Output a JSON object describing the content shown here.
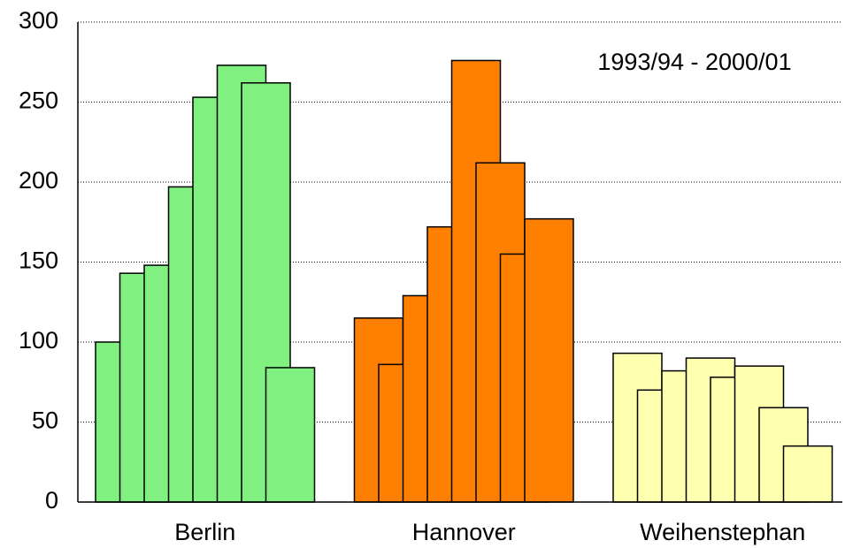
{
  "chart_data": {
    "type": "bar",
    "annotation": "1993/94 - 2000/01",
    "categories": [
      "Berlin",
      "Hannover",
      "Weihenstephan"
    ],
    "groups": [
      {
        "color": "#80f080",
        "values": [
          100,
          143,
          148,
          197,
          253,
          273,
          262,
          84
        ]
      },
      {
        "color": "#ff8000",
        "values": [
          115,
          86,
          129,
          172,
          276,
          212,
          155,
          177
        ]
      },
      {
        "color": "#ffffb0",
        "values": [
          93,
          70,
          82,
          90,
          78,
          85,
          59,
          35
        ]
      }
    ],
    "ylim": [
      0,
      300
    ],
    "yticks": [
      0,
      50,
      100,
      150,
      200,
      250,
      300
    ],
    "grid": true
  }
}
